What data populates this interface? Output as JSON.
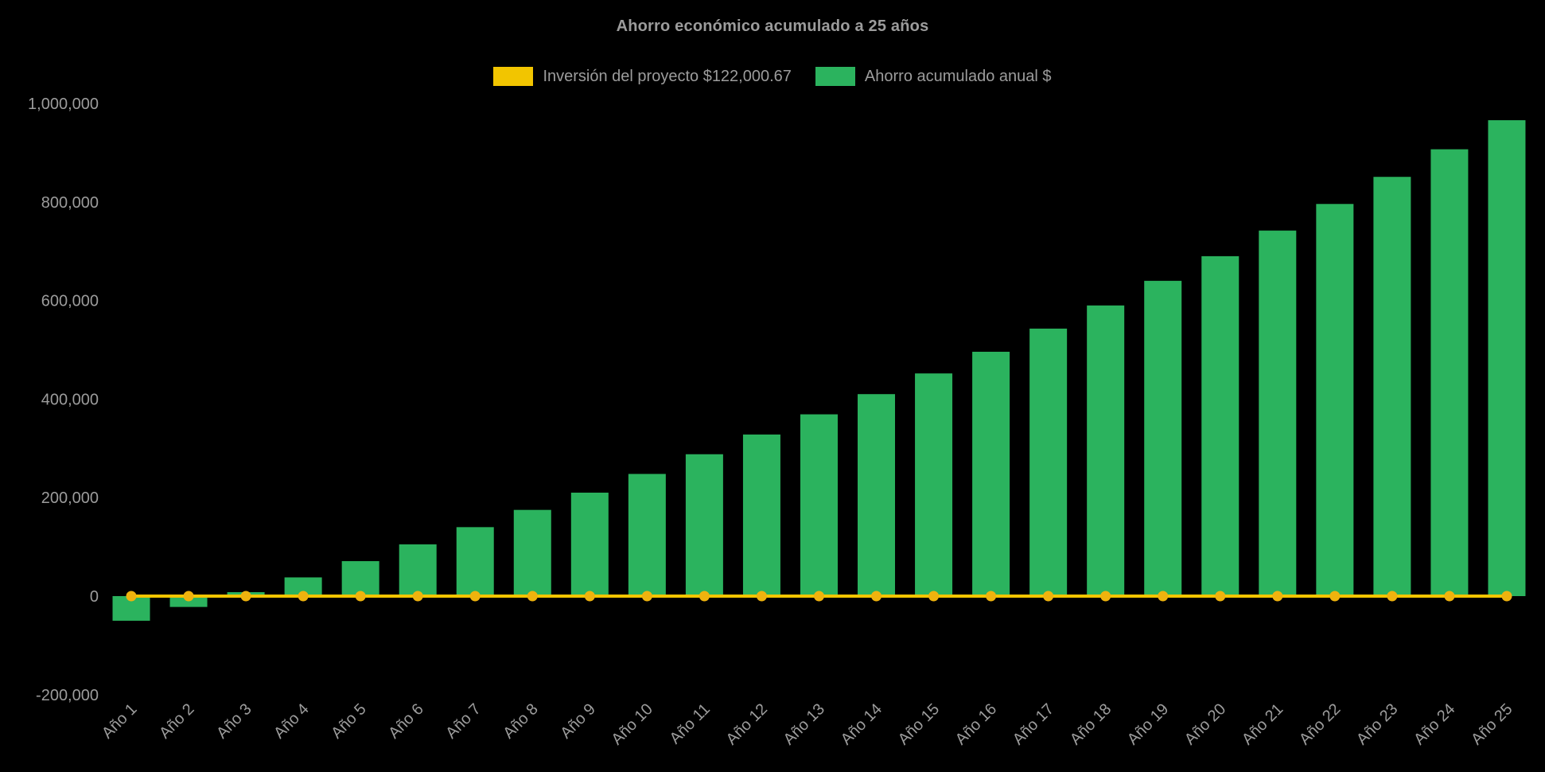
{
  "chart_data": {
    "type": "bar",
    "title": "Ahorro económico acumulado a 25 años",
    "background_color": "#000000",
    "text_color": "#9c9c9c",
    "grid": false,
    "legend_position": "top",
    "categories": [
      "Año 1",
      "Año 2",
      "Año 3",
      "Año 4",
      "Año 5",
      "Año 6",
      "Año 7",
      "Año 8",
      "Año 9",
      "Año 10",
      "Año 11",
      "Año 12",
      "Año 13",
      "Año 14",
      "Año 15",
      "Año 16",
      "Año 17",
      "Año 18",
      "Año 19",
      "Año 20",
      "Año 21",
      "Año 22",
      "Año 23",
      "Año 24",
      "Año 25"
    ],
    "series": [
      {
        "name": "Inversión del proyecto $122,000.67",
        "type": "line",
        "color": "#F2C500",
        "marker_color": "#EFB30E",
        "values": [
          0,
          0,
          0,
          0,
          0,
          0,
          0,
          0,
          0,
          0,
          0,
          0,
          0,
          0,
          0,
          0,
          0,
          0,
          0,
          0,
          0,
          0,
          0,
          0,
          0
        ]
      },
      {
        "name": "Ahorro acumulado anual $",
        "type": "bar",
        "color": "#2BB35E",
        "values": [
          -50000,
          -22000,
          8000,
          38000,
          71000,
          105000,
          140000,
          175000,
          210000,
          248000,
          288000,
          328000,
          369000,
          410000,
          452000,
          496000,
          543000,
          590000,
          640000,
          690000,
          742000,
          796000,
          851000,
          907000,
          966000
        ]
      }
    ],
    "y_axis": {
      "range": [
        -200000,
        1000000
      ],
      "tick_values": [
        1000000,
        800000,
        600000,
        400000,
        200000,
        0,
        -200000
      ],
      "tick_labels": [
        "1,000,000",
        "800,000",
        "600,000",
        "400,000",
        "200,000",
        "0",
        "-200,000"
      ]
    },
    "x_axis": {
      "label_rotation_deg": -45
    }
  }
}
